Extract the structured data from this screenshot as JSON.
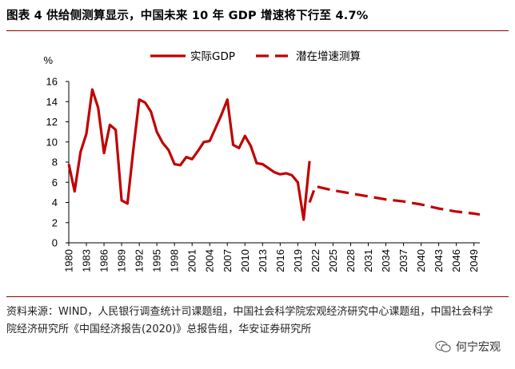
{
  "header": {
    "title": "图表 4 供给侧测算显示，中国未来 10 年 GDP 增速将下行至 4.7%"
  },
  "footer": {
    "source": "资料来源：WIND，人民银行调查统计司课题组，中国社会科学院宏观经济研究中心课题组，中国社会科学院经济研究所《中国经济报告(2020)》总报告组，华安证券研究所",
    "watermark": "何宁宏观"
  },
  "colors": {
    "series": "#c00000",
    "rule": "#8b0000"
  },
  "chart_data": {
    "type": "line",
    "title": "",
    "ylabel": "%",
    "xlabel": "",
    "ylim": [
      0,
      16
    ],
    "yticks": [
      0,
      2,
      4,
      6,
      8,
      10,
      12,
      14,
      16
    ],
    "xlim": [
      1980,
      2050
    ],
    "xticks": [
      "1980",
      "1983",
      "1986",
      "1989",
      "1992",
      "1995",
      "1998",
      "2001",
      "2004",
      "2007",
      "2010",
      "2013",
      "2016",
      "2019",
      "2022",
      "2025",
      "2028",
      "2031",
      "2034",
      "2037",
      "2040",
      "2043",
      "2046",
      "2049"
    ],
    "grid": false,
    "legend_position": "top",
    "series": [
      {
        "name": "实际GDP",
        "style": "solid",
        "x": [
          1980,
          1981,
          1982,
          1983,
          1984,
          1985,
          1986,
          1987,
          1988,
          1989,
          1990,
          1991,
          1992,
          1993,
          1994,
          1995,
          1996,
          1997,
          1998,
          1999,
          2000,
          2001,
          2002,
          2003,
          2004,
          2005,
          2006,
          2007,
          2008,
          2009,
          2010,
          2011,
          2012,
          2013,
          2014,
          2015,
          2016,
          2017,
          2018,
          2019,
          2020,
          2021
        ],
        "values": [
          7.8,
          5.1,
          9.0,
          10.8,
          15.2,
          13.4,
          8.9,
          11.7,
          11.2,
          4.2,
          3.9,
          9.3,
          14.2,
          13.9,
          13.0,
          11.0,
          9.9,
          9.2,
          7.8,
          7.7,
          8.5,
          8.3,
          9.1,
          10.0,
          10.1,
          11.4,
          12.7,
          14.2,
          9.7,
          9.4,
          10.6,
          9.6,
          7.9,
          7.8,
          7.4,
          7.0,
          6.8,
          6.9,
          6.7,
          6.0,
          2.3,
          8.1
        ]
      },
      {
        "name": "潜在增速测算",
        "style": "dashed",
        "x": [
          2021,
          2022,
          2025,
          2028,
          2031,
          2034,
          2037,
          2040,
          2043,
          2046,
          2049,
          2050
        ],
        "values": [
          4.0,
          5.6,
          5.2,
          4.9,
          4.6,
          4.3,
          4.1,
          3.8,
          3.4,
          3.1,
          2.9,
          2.8
        ]
      }
    ]
  }
}
